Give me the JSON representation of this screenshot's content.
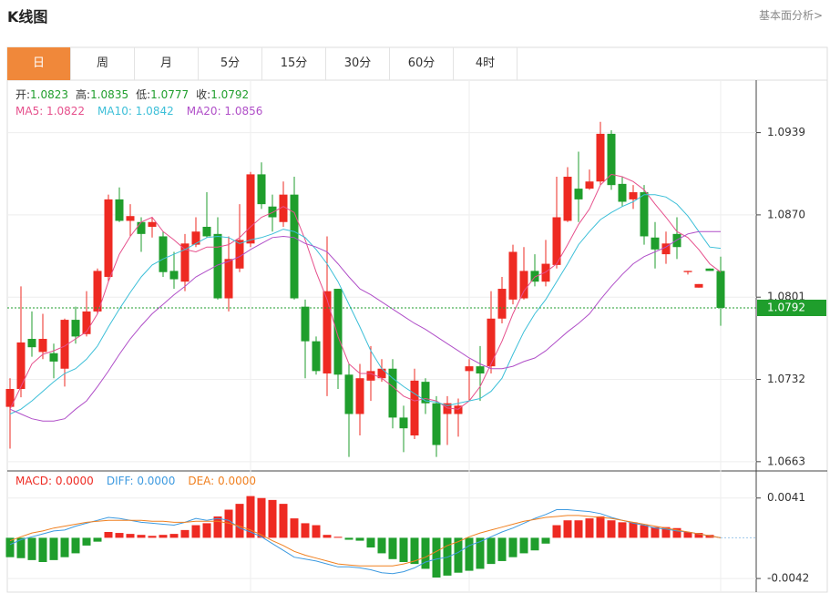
{
  "header": {
    "title": "K线图",
    "link": "基本面分析>"
  },
  "tabs": [
    "日",
    "周",
    "月",
    "5分",
    "15分",
    "30分",
    "60分",
    "4时"
  ],
  "active_tab": 0,
  "chart_data": [
    {
      "type": "candlestick",
      "ohlc_labels": [
        {
          "label": "开:",
          "value": "1.0823"
        },
        {
          "label": "高:",
          "value": "1.0835"
        },
        {
          "label": "低:",
          "value": "1.0777"
        },
        {
          "label": "收:",
          "value": "1.0792"
        }
      ],
      "up_color": "#ee2a22",
      "down_color": "#1f9e2c",
      "open": [
        1.0709,
        1.0724,
        1.0766,
        1.0755,
        1.0754,
        1.0741,
        1.0782,
        1.077,
        1.0789,
        1.0818,
        1.0883,
        1.0865,
        1.0864,
        1.086,
        1.0852,
        1.0823,
        1.0814,
        1.0845,
        1.086,
        1.0854,
        1.08,
        1.0825,
        1.0846,
        1.0904,
        1.0877,
        1.0864,
        1.0887,
        1.0793,
        1.0764,
        1.0737,
        1.0808,
        1.0736,
        1.0703,
        1.0731,
        1.0733,
        1.0741,
        1.07,
        1.0685,
        1.073,
        1.0712,
        1.0703,
        1.0703,
        1.0739,
        1.0743,
        1.0743,
        1.0783,
        1.0799,
        1.08,
        1.0823,
        1.0814,
        1.0828,
        1.0865,
        1.0892,
        1.0892,
        1.0898,
        1.0938,
        1.0896,
        1.0883,
        1.0889,
        1.0851,
        1.0837,
        1.0854,
        1.0822,
        1.0809,
        1.0825,
        1.0823
      ],
      "high": [
        1.0733,
        1.081,
        1.0789,
        1.0787,
        1.0762,
        1.0783,
        1.0793,
        1.0806,
        1.0825,
        1.0887,
        1.0893,
        1.0879,
        1.0868,
        1.0868,
        1.0856,
        1.0839,
        1.0854,
        1.0868,
        1.0889,
        1.0868,
        1.0852,
        1.0879,
        1.0906,
        1.0914,
        1.0887,
        1.0898,
        1.0902,
        1.0799,
        1.0768,
        1.0852,
        1.0808,
        1.0745,
        1.0745,
        1.076,
        1.0749,
        1.0749,
        1.071,
        1.0741,
        1.0733,
        1.0718,
        1.0718,
        1.0716,
        1.0749,
        1.076,
        1.0806,
        1.0818,
        1.0845,
        1.0843,
        1.0837,
        1.0849,
        1.0902,
        1.091,
        1.0923,
        1.0908,
        1.0948,
        1.0941,
        1.0902,
        1.0895,
        1.0895,
        1.0864,
        1.0856,
        1.0868,
        1.0823,
        1.0812,
        1.0825,
        1.0835
      ],
      "low": [
        1.0674,
        1.0717,
        1.0751,
        1.0749,
        1.0733,
        1.0726,
        1.0762,
        1.0768,
        1.0787,
        1.0814,
        1.0864,
        1.0852,
        1.0839,
        1.0851,
        1.0818,
        1.0808,
        1.0806,
        1.0843,
        1.0851,
        1.0799,
        1.0789,
        1.0822,
        1.0843,
        1.0875,
        1.0856,
        1.086,
        1.0799,
        1.0733,
        1.0736,
        1.0718,
        1.0724,
        1.0667,
        1.0685,
        1.0714,
        1.073,
        1.0691,
        1.0671,
        1.0682,
        1.0703,
        1.0667,
        1.0677,
        1.0684,
        1.0714,
        1.0714,
        1.0737,
        1.0779,
        1.0795,
        1.0799,
        1.081,
        1.081,
        1.0825,
        1.0864,
        1.0864,
        1.0891,
        1.0895,
        1.0891,
        1.0877,
        1.0875,
        1.0845,
        1.0825,
        1.0829,
        1.0833,
        1.082,
        1.0809,
        1.0823,
        1.0777
      ],
      "close": [
        1.0724,
        1.0763,
        1.0759,
        1.0766,
        1.0747,
        1.0782,
        1.0768,
        1.0789,
        1.0823,
        1.0883,
        1.0865,
        1.0869,
        1.0854,
        1.0864,
        1.0822,
        1.0816,
        1.0846,
        1.0856,
        1.0852,
        1.08,
        1.0833,
        1.0849,
        1.0904,
        1.0879,
        1.0868,
        1.0887,
        1.08,
        1.0764,
        1.0739,
        1.0806,
        1.0736,
        1.0703,
        1.0733,
        1.0739,
        1.0741,
        1.07,
        1.0691,
        1.0731,
        1.0712,
        1.0677,
        1.0712,
        1.071,
        1.0743,
        1.0737,
        1.0783,
        1.0808,
        1.0839,
        1.0823,
        1.0814,
        1.0829,
        1.0868,
        1.0902,
        1.0883,
        1.0898,
        1.0938,
        1.0895,
        1.0881,
        1.0889,
        1.0852,
        1.0841,
        1.0846,
        1.0843,
        1.0823,
        1.0812,
        1.0823,
        1.0792
      ],
      "lines": [
        {
          "label": "MA5: 1.0822",
          "color": "#e6508c",
          "values": [
            1.0707,
            1.0726,
            1.0745,
            1.0753,
            1.0756,
            1.076,
            1.0766,
            1.0772,
            1.0787,
            1.0814,
            1.0837,
            1.0852,
            1.0864,
            1.0868,
            1.0856,
            1.0849,
            1.0841,
            1.0839,
            1.0843,
            1.0843,
            1.0845,
            1.0851,
            1.086,
            1.0868,
            1.0872,
            1.0877,
            1.0872,
            1.0849,
            1.0822,
            1.0799,
            1.0768,
            1.0745,
            1.0737,
            1.0737,
            1.0733,
            1.0726,
            1.0718,
            1.0714,
            1.0716,
            1.0714,
            1.0708,
            1.0707,
            1.0714,
            1.0726,
            1.0745,
            1.0764,
            1.0787,
            1.0806,
            1.0818,
            1.0822,
            1.0829,
            1.0845,
            1.0862,
            1.0875,
            1.0895,
            1.0904,
            1.0902,
            1.0898,
            1.0891,
            1.0879,
            1.0868,
            1.0856,
            1.0851,
            1.0841,
            1.0829,
            1.0822
          ]
        },
        {
          "label": "MA10: 1.0842",
          "color": "#3cbfd8",
          "values": [
            1.0703,
            1.0707,
            1.0714,
            1.0722,
            1.073,
            1.0737,
            1.0741,
            1.0749,
            1.076,
            1.0776,
            1.0791,
            1.0805,
            1.0818,
            1.0828,
            1.0833,
            1.0837,
            1.0841,
            1.0846,
            1.0851,
            1.0852,
            1.0851,
            1.0846,
            1.0849,
            1.0851,
            1.0854,
            1.0858,
            1.0856,
            1.0851,
            1.0841,
            1.0829,
            1.0814,
            1.0795,
            1.0776,
            1.0756,
            1.0741,
            1.0733,
            1.0726,
            1.072,
            1.0714,
            1.0713,
            1.071,
            1.0712,
            1.0714,
            1.0716,
            1.0722,
            1.0733,
            1.0753,
            1.0772,
            1.0787,
            1.0799,
            1.0814,
            1.0829,
            1.0845,
            1.0856,
            1.0866,
            1.0872,
            1.0877,
            1.0881,
            1.0887,
            1.0887,
            1.0885,
            1.0879,
            1.0869,
            1.0856,
            1.0843,
            1.0842
          ]
        },
        {
          "label": "MA20: 1.0856",
          "color": "#b04fc8",
          "values": [
            1.0707,
            1.0703,
            1.0699,
            1.0697,
            1.0697,
            1.0699,
            1.0707,
            1.0714,
            1.0726,
            1.0739,
            1.0753,
            1.0766,
            1.0777,
            1.0787,
            1.0795,
            1.0803,
            1.081,
            1.0818,
            1.0823,
            1.0828,
            1.0831,
            1.0835,
            1.0841,
            1.0846,
            1.0851,
            1.0852,
            1.0851,
            1.0846,
            1.0843,
            1.0839,
            1.0829,
            1.0818,
            1.0808,
            1.0803,
            1.0797,
            1.0791,
            1.0785,
            1.0779,
            1.0774,
            1.0768,
            1.0762,
            1.0756,
            1.075,
            1.0745,
            1.0741,
            1.0741,
            1.0743,
            1.0747,
            1.075,
            1.0756,
            1.0764,
            1.0772,
            1.0779,
            1.0787,
            1.0799,
            1.081,
            1.082,
            1.0829,
            1.0835,
            1.0839,
            1.0843,
            1.0849,
            1.0854,
            1.0856,
            1.0856,
            1.0856
          ]
        }
      ],
      "ylim": [
        1.0656,
        1.0983
      ],
      "yticks": [
        1.0939,
        {
          "value": 1.087,
          "label": "1.0870"
        },
        1.0801,
        1.0732,
        1.0663
      ],
      "grid": true,
      "last_price": 1.0792,
      "last_color": "#1f9e2c"
    },
    {
      "type": "macd",
      "series": [
        {
          "label": "MACD: 0.0000",
          "style": "bar",
          "color": "#ee2a22",
          "down_color": "#1f9e2c",
          "values": [
            -0.002,
            -0.0021,
            -0.0023,
            -0.0025,
            -0.0023,
            -0.002,
            -0.0016,
            -0.0008,
            -0.0004,
            0.0006,
            0.0005,
            0.0004,
            0.0003,
            0.0002,
            0.0003,
            0.0004,
            0.0008,
            0.0013,
            0.0015,
            0.0022,
            0.0029,
            0.0035,
            0.0043,
            0.0041,
            0.0039,
            0.0035,
            0.002,
            0.0015,
            0.0013,
            0.0003,
            0.0001,
            -0.0002,
            -0.0003,
            -0.001,
            -0.0016,
            -0.0022,
            -0.0025,
            -0.0027,
            -0.0032,
            -0.0041,
            -0.0039,
            -0.0036,
            -0.0034,
            -0.0032,
            -0.0027,
            -0.0024,
            -0.002,
            -0.0016,
            -0.0013,
            -0.0006,
            0.0013,
            0.0018,
            0.0018,
            0.002,
            0.0022,
            0.0018,
            0.0016,
            0.0016,
            0.0013,
            0.0011,
            0.0011,
            0.001,
            0.0006,
            0.0005,
            0.0003,
            0
          ]
        },
        {
          "label": "DIFF: 0.0000",
          "style": "line",
          "color": "#3d9ae0",
          "values": [
            -0.0007,
            -0.0002,
            0.0001,
            0.0004,
            0.0007,
            0.0008,
            0.0012,
            0.0015,
            0.0018,
            0.0021,
            0.002,
            0.0018,
            0.0016,
            0.0015,
            0.0014,
            0.0013,
            0.0016,
            0.002,
            0.0018,
            0.002,
            0.0018,
            0.001,
            0.0006,
            0.0001,
            -0.0006,
            -0.0013,
            -0.002,
            -0.0022,
            -0.0024,
            -0.0027,
            -0.003,
            -0.003,
            -0.0031,
            -0.0033,
            -0.0036,
            -0.0037,
            -0.0035,
            -0.0031,
            -0.0025,
            -0.0022,
            -0.002,
            -0.0015,
            -0.0008,
            -0.0004,
            0.0001,
            0.0006,
            0.001,
            0.0015,
            0.002,
            0.0024,
            0.0029,
            0.0029,
            0.0028,
            0.0027,
            0.0025,
            0.0021,
            0.0018,
            0.0015,
            0.0013,
            0.001,
            0.0009,
            0.0007,
            0.0006,
            0.0004,
            0.0002,
            0
          ]
        },
        {
          "label": "DEA: 0.0000",
          "style": "line",
          "color": "#f08020",
          "values": [
            -0.0003,
            0.0001,
            0.0005,
            0.0007,
            0.001,
            0.0012,
            0.0014,
            0.0016,
            0.0017,
            0.0018,
            0.0018,
            0.0018,
            0.0018,
            0.0017,
            0.0017,
            0.0016,
            0.0016,
            0.0017,
            0.0017,
            0.0017,
            0.0015,
            0.0012,
            0.0008,
            0.0003,
            -0.0003,
            -0.0008,
            -0.0014,
            -0.0018,
            -0.0021,
            -0.0024,
            -0.0027,
            -0.0028,
            -0.0029,
            -0.0029,
            -0.0029,
            -0.0029,
            -0.0027,
            -0.0024,
            -0.002,
            -0.0014,
            -0.0008,
            -0.0004,
            0.0001,
            0.0005,
            0.0008,
            0.0011,
            0.0014,
            0.0017,
            0.0019,
            0.0021,
            0.0022,
            0.0023,
            0.0023,
            0.0022,
            0.0021,
            0.002,
            0.0018,
            0.0016,
            0.0014,
            0.0012,
            0.001,
            0.0008,
            0.0006,
            0.0004,
            0.0002,
            0
          ]
        }
      ],
      "ylim": [
        -0.0056,
        0.0068
      ],
      "yticks": [
        0.0041,
        -0.0042
      ],
      "grid": true
    }
  ]
}
